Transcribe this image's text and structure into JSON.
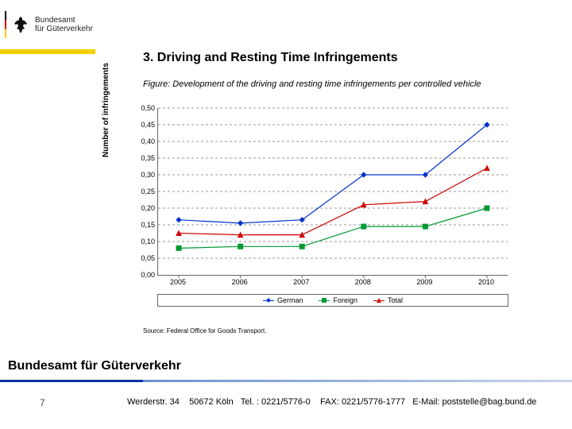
{
  "header": {
    "logo_line1": "Bundesamt",
    "logo_line2": "für Güterverkehr"
  },
  "section_title": "3. Driving and Resting Time Infringements",
  "figure_caption": "Figure: Development of the driving and resting time infringements per controlled vehicle",
  "chart": {
    "type": "line",
    "y_label": "Number of infringements",
    "xlim": [
      2005,
      2010
    ],
    "categories": [
      "2005",
      "2006",
      "2007",
      "2008",
      "2009",
      "2010"
    ],
    "ylim": [
      0.0,
      0.5
    ],
    "ytick_step": 0.05,
    "ytick_labels": [
      "0,00",
      "0,05",
      "0,10",
      "0,15",
      "0,20",
      "0,25",
      "0,30",
      "0,35",
      "0,40",
      "0,45",
      "0,50"
    ],
    "x_inset": [
      26,
      414
    ],
    "grid_color": "#999999",
    "grid_dash": "3,3",
    "background_color": "#ffffff",
    "axis_color": "#666666",
    "tick_fontsize": 9,
    "label_fontsize": 10,
    "marker_size": 6,
    "line_width": 1.2,
    "series": [
      {
        "name": "German",
        "color": "#0033cc",
        "marker": "diamond",
        "values": [
          0.165,
          0.155,
          0.165,
          0.3,
          0.3,
          0.45
        ]
      },
      {
        "name": "Foreign",
        "color": "#009933",
        "marker": "square",
        "values": [
          0.08,
          0.085,
          0.085,
          0.145,
          0.145,
          0.2
        ]
      },
      {
        "name": "Total",
        "color": "#cc0000",
        "marker": "triangle",
        "values": [
          0.125,
          0.12,
          0.12,
          0.21,
          0.22,
          0.32
        ]
      }
    ]
  },
  "source_line": "Source: Federal Office for Goods Transport.",
  "footer": {
    "org": "Bundesamt für Güterverkehr",
    "page": "7",
    "address": "Werderstr. 34",
    "city": "50672 Köln",
    "tel_label": "Tel. :",
    "tel": "0221/5776-0",
    "fax_label": "FAX:",
    "fax": "0221/5776-1777",
    "email_label": "E-Mail:",
    "email": "poststelle@bag.bund.de"
  }
}
